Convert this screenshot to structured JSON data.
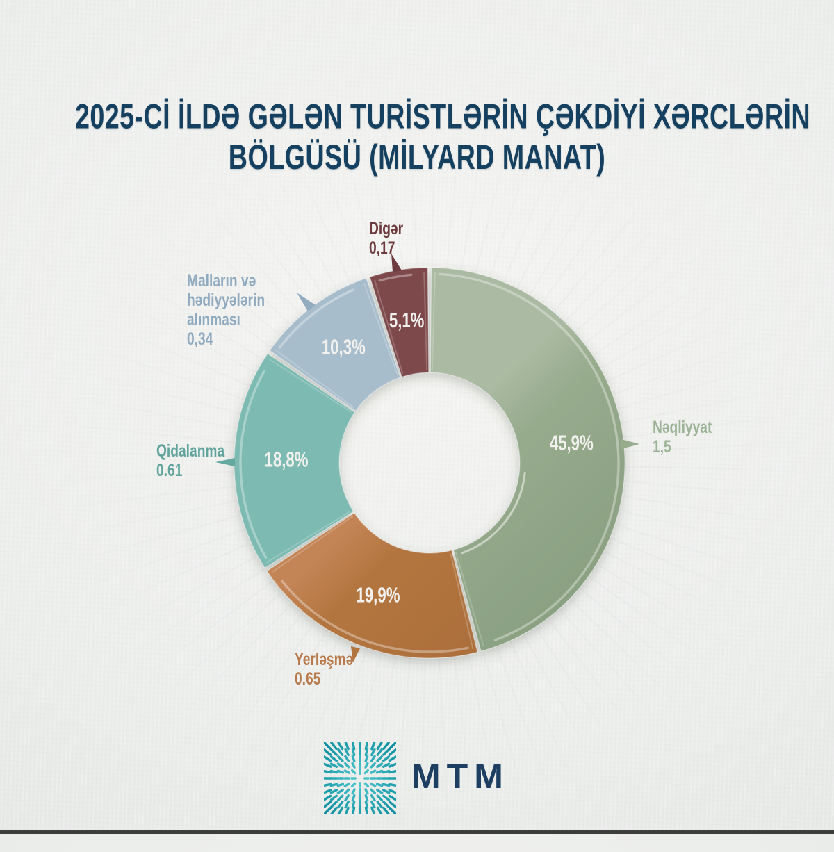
{
  "title": {
    "lines": [
      "2025-Cİ İLDƏ GƏLƏN TURİSTLƏRİN ÇƏKDİYİ XƏRCLƏRİN",
      "BÖLGÜSÜ (MİLYARD MANAT)"
    ],
    "color": "#16405f"
  },
  "chart_data": {
    "type": "donut",
    "title": "2025-ci ildə gələn turistlərin çəkdiyi xərclərin bölgüsü (milyard manat)",
    "unit": "milyard manat",
    "start_angle_deg": 0,
    "direction": "clockwise",
    "legend_position": "around-chart",
    "segments": [
      {
        "label": "Nəqliyyat",
        "value_label": "1,5",
        "value": 1.5,
        "pct": 45.9,
        "pct_label": "45,9%",
        "color": "#97ab8d",
        "color_light": "#abbaa2",
        "color_dark": "#859c7d",
        "label_color": "#9db397"
      },
      {
        "label": "Yerləşmə",
        "value_label": "0.65",
        "value": 0.65,
        "pct": 19.9,
        "pct_label": "19,9%",
        "color": "#b3753f",
        "color_light": "#c48557",
        "color_dark": "#a76c3c",
        "label_color": "#b87a4a"
      },
      {
        "label": "Qidalanma",
        "value_label": "0.61",
        "value": 0.61,
        "pct": 18.8,
        "pct_label": "18,8%",
        "color": "#65a8a0",
        "color_light": "#7dbab2",
        "color_dark": "#51948e",
        "label_color": "#61a49c"
      },
      {
        "label": "Malların və hədiyyələrin alınması",
        "value_label": "0,34",
        "value": 0.34,
        "pct": 10.3,
        "pct_label": "10,3%",
        "color": "#93abbe",
        "color_light": "#a8bdcc",
        "color_dark": "#829eb5",
        "label_color": "#90aabf"
      },
      {
        "label": "Digər",
        "value_label": "0,17",
        "value": 0.17,
        "pct": 5.1,
        "pct_label": "5,1%",
        "color": "#6d3a3f",
        "color_light": "#7e494c",
        "color_dark": "#5c3037",
        "label_color": "#6d3a3e"
      }
    ],
    "pct_text_color": "#f2f1ee"
  },
  "footer": {
    "logo_text": "MTM",
    "logo_color": "#1d3f62",
    "logo_mark_colors": [
      "#54cdd2",
      "#0d8fa0"
    ]
  }
}
